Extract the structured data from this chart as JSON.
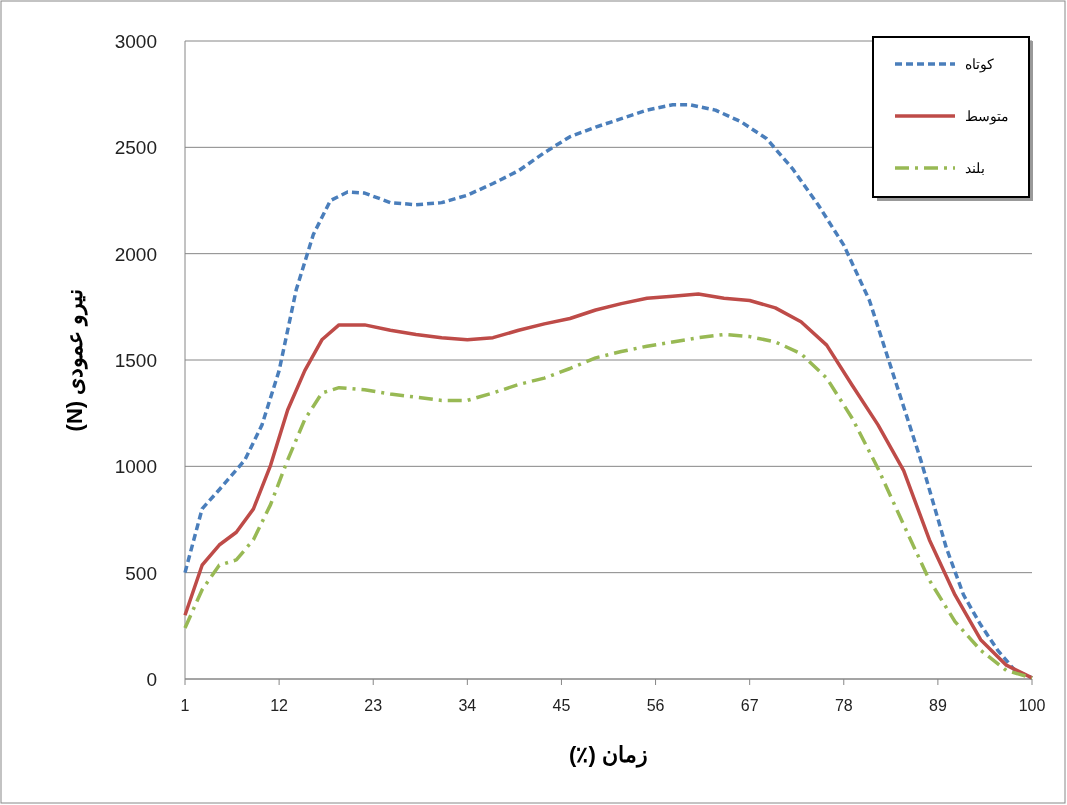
{
  "chart_data": {
    "type": "line",
    "xlabel": "زمان (٪)",
    "ylabel": "نیرو عمودی (N)",
    "xlim": [
      1,
      100
    ],
    "xticks": [
      1,
      12,
      23,
      34,
      45,
      56,
      67,
      78,
      89,
      100
    ],
    "ylim": [
      0,
      3000
    ],
    "yticks": [
      0,
      500,
      1000,
      1500,
      2000,
      2500,
      3000
    ],
    "grid": "y",
    "legend": "top right",
    "series": [
      {
        "name": "کوتاه",
        "color": "#4a7ebb",
        "line_style": "dashed",
        "x": [
          1,
          3,
          5,
          8,
          10,
          12,
          14,
          16,
          18,
          20,
          22,
          25,
          28,
          31,
          34,
          37,
          40,
          43,
          46,
          49,
          52,
          55,
          58,
          60,
          63,
          66,
          69,
          72,
          75,
          78,
          81,
          84,
          87,
          90,
          92,
          94,
          96,
          98,
          100
        ],
        "values": [
          500,
          800,
          890,
          1030,
          1195,
          1450,
          1830,
          2090,
          2250,
          2290,
          2285,
          2240,
          2230,
          2240,
          2275,
          2330,
          2390,
          2475,
          2550,
          2595,
          2635,
          2675,
          2700,
          2700,
          2675,
          2620,
          2540,
          2400,
          2230,
          2040,
          1780,
          1405,
          1030,
          615,
          395,
          255,
          135,
          40,
          5
        ]
      },
      {
        "name": "متوسط",
        "color": "#be4b48",
        "line_style": "solid",
        "x": [
          1,
          3,
          5,
          7,
          9,
          11,
          13,
          15,
          17,
          19,
          22,
          25,
          28,
          31,
          34,
          37,
          40,
          43,
          46,
          49,
          52,
          55,
          58,
          61,
          64,
          67,
          70,
          73,
          76,
          79,
          82,
          85,
          88,
          91,
          94,
          97,
          100
        ],
        "values": [
          300,
          535,
          630,
          690,
          800,
          1005,
          1265,
          1450,
          1595,
          1665,
          1665,
          1640,
          1620,
          1605,
          1595,
          1605,
          1640,
          1670,
          1695,
          1735,
          1765,
          1790,
          1800,
          1810,
          1790,
          1780,
          1745,
          1680,
          1570,
          1380,
          1195,
          980,
          655,
          395,
          185,
          65,
          5
        ]
      },
      {
        "name": "بلند",
        "color": "#98b954",
        "line_style": "dashdot",
        "x": [
          1,
          3,
          5,
          7,
          9,
          11,
          13,
          15,
          17,
          19,
          22,
          25,
          28,
          31,
          34,
          37,
          40,
          43,
          46,
          49,
          52,
          55,
          58,
          61,
          64,
          67,
          70,
          73,
          76,
          79,
          82,
          85,
          88,
          91,
          94,
          97,
          100
        ],
        "values": [
          240,
          420,
          535,
          560,
          655,
          820,
          1030,
          1220,
          1345,
          1370,
          1360,
          1340,
          1325,
          1310,
          1310,
          1345,
          1385,
          1415,
          1460,
          1510,
          1540,
          1565,
          1585,
          1605,
          1620,
          1610,
          1585,
          1530,
          1415,
          1225,
          990,
          725,
          465,
          270,
          135,
          40,
          5
        ]
      }
    ]
  }
}
